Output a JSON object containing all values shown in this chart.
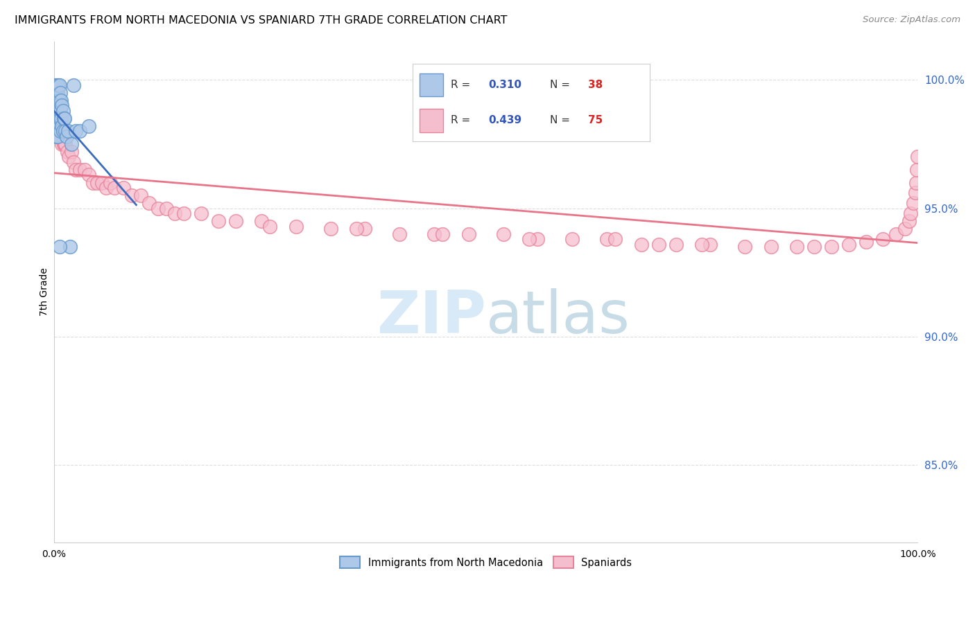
{
  "title": "IMMIGRANTS FROM NORTH MACEDONIA VS SPANIARD 7TH GRADE CORRELATION CHART",
  "source": "Source: ZipAtlas.com",
  "ylabel": "7th Grade",
  "xlim": [
    0.0,
    1.0
  ],
  "ylim": [
    0.82,
    1.015
  ],
  "yticks": [
    0.85,
    0.9,
    0.95,
    1.0
  ],
  "ytick_labels": [
    "85.0%",
    "90.0%",
    "95.0%",
    "100.0%"
  ],
  "xticks": [
    0.0,
    0.2,
    0.4,
    0.6,
    0.8,
    1.0
  ],
  "xtick_labels": [
    "0.0%",
    "",
    "",
    "",
    "",
    "100.0%"
  ],
  "blue_R": 0.31,
  "blue_N": 38,
  "pink_R": 0.439,
  "pink_N": 75,
  "blue_color": "#adc8e8",
  "blue_edge": "#6699cc",
  "pink_color": "#f5bece",
  "pink_edge": "#e8829a",
  "blue_line_color": "#3a6bbf",
  "pink_line_color": "#e8748a",
  "legend_R_color": "#3355bb",
  "legend_N_color": "#dd2222",
  "background_color": "#ffffff",
  "grid_color": "#dddddd",
  "watermark_color": "#d8eaf8",
  "blue_x": [
    0.001,
    0.001,
    0.002,
    0.002,
    0.002,
    0.003,
    0.003,
    0.003,
    0.004,
    0.004,
    0.004,
    0.005,
    0.005,
    0.005,
    0.006,
    0.006,
    0.006,
    0.007,
    0.007,
    0.007,
    0.008,
    0.008,
    0.009,
    0.009,
    0.01,
    0.01,
    0.011,
    0.012,
    0.013,
    0.014,
    0.016,
    0.018,
    0.02,
    0.025,
    0.03,
    0.04,
    0.022,
    0.006
  ],
  "blue_y": [
    0.998,
    0.99,
    0.995,
    0.985,
    0.978,
    0.998,
    0.99,
    0.982,
    0.995,
    0.988,
    0.978,
    0.998,
    0.992,
    0.982,
    0.998,
    0.992,
    0.985,
    0.995,
    0.988,
    0.98,
    0.992,
    0.985,
    0.99,
    0.982,
    0.988,
    0.98,
    0.985,
    0.985,
    0.98,
    0.978,
    0.98,
    0.935,
    0.975,
    0.98,
    0.98,
    0.982,
    0.998,
    0.935
  ],
  "pink_x": [
    0.002,
    0.003,
    0.004,
    0.005,
    0.006,
    0.007,
    0.008,
    0.009,
    0.01,
    0.011,
    0.012,
    0.013,
    0.015,
    0.017,
    0.02,
    0.022,
    0.025,
    0.03,
    0.035,
    0.04,
    0.045,
    0.05,
    0.055,
    0.06,
    0.065,
    0.07,
    0.08,
    0.09,
    0.1,
    0.11,
    0.12,
    0.13,
    0.14,
    0.15,
    0.17,
    0.19,
    0.21,
    0.24,
    0.28,
    0.32,
    0.36,
    0.4,
    0.44,
    0.48,
    0.52,
    0.56,
    0.6,
    0.64,
    0.68,
    0.72,
    0.76,
    0.8,
    0.83,
    0.86,
    0.88,
    0.9,
    0.92,
    0.94,
    0.96,
    0.975,
    0.985,
    0.99,
    0.992,
    0.995,
    0.997,
    0.998,
    0.999,
    1.0,
    0.7,
    0.75,
    0.35,
    0.25,
    0.45,
    0.55,
    0.65
  ],
  "pink_y": [
    0.99,
    0.985,
    0.982,
    0.98,
    0.98,
    0.978,
    0.98,
    0.975,
    0.98,
    0.975,
    0.975,
    0.975,
    0.972,
    0.97,
    0.972,
    0.968,
    0.965,
    0.965,
    0.965,
    0.963,
    0.96,
    0.96,
    0.96,
    0.958,
    0.96,
    0.958,
    0.958,
    0.955,
    0.955,
    0.952,
    0.95,
    0.95,
    0.948,
    0.948,
    0.948,
    0.945,
    0.945,
    0.945,
    0.943,
    0.942,
    0.942,
    0.94,
    0.94,
    0.94,
    0.94,
    0.938,
    0.938,
    0.938,
    0.936,
    0.936,
    0.936,
    0.935,
    0.935,
    0.935,
    0.935,
    0.935,
    0.936,
    0.937,
    0.938,
    0.94,
    0.942,
    0.945,
    0.948,
    0.952,
    0.956,
    0.96,
    0.965,
    0.97,
    0.936,
    0.936,
    0.942,
    0.943,
    0.94,
    0.938,
    0.938
  ]
}
